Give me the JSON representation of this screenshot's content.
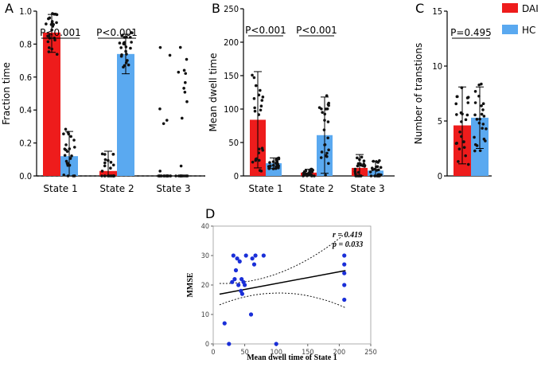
{
  "legend": [
    {
      "label": "DAI",
      "color": "#ee1c1c"
    },
    {
      "label": "HC",
      "color": "#5aa9f0"
    }
  ],
  "chart_data": [
    {
      "panel": "A",
      "type": "bar",
      "ylabel": "Fraction time",
      "ylim": [
        0,
        1.0
      ],
      "yticks": [
        "0.0",
        "0.2",
        "0.4",
        "0.6",
        "0.8",
        "1.0"
      ],
      "categories": [
        "State 1",
        "State 2",
        "State 3"
      ],
      "series": [
        {
          "name": "DAI",
          "values": [
            0.87,
            0.03,
            0.0
          ]
        },
        {
          "name": "HC",
          "values": [
            0.12,
            0.74,
            0.0
          ]
        }
      ],
      "errors": [
        [
          0.12,
          0.12,
          0.0
        ],
        [
          0.15,
          0.12,
          0.0
        ]
      ],
      "annotations": [
        {
          "text": "P<0.001",
          "category": 0
        },
        {
          "text": "P<0.001",
          "category": 1
        }
      ]
    },
    {
      "panel": "B",
      "type": "bar",
      "ylabel": "Mean dwell time",
      "ylim": [
        0,
        250
      ],
      "yticks": [
        "0",
        "50",
        "100",
        "150",
        "200",
        "250"
      ],
      "categories": [
        "State 1",
        "State 2",
        "State 3"
      ],
      "series": [
        {
          "name": "DAI",
          "values": [
            84,
            5,
            12
          ]
        },
        {
          "name": "HC",
          "values": [
            19,
            61,
            8
          ]
        }
      ],
      "errors": [
        [
          72,
          5,
          20
        ],
        [
          8,
          57,
          14
        ]
      ],
      "annotations": [
        {
          "text": "P<0.001",
          "category": 0
        },
        {
          "text": "P<0.001",
          "category": 1
        }
      ]
    },
    {
      "panel": "C",
      "type": "bar",
      "ylabel": "Number of transtions",
      "ylim": [
        0,
        15
      ],
      "yticks": [
        "0",
        "5",
        "10",
        "15"
      ],
      "categories": [
        ""
      ],
      "series": [
        {
          "name": "DAI",
          "values": [
            4.6
          ]
        },
        {
          "name": "HC",
          "values": [
            5.3
          ]
        }
      ],
      "errors": [
        [
          3.5
        ],
        [
          2.8
        ]
      ],
      "annotations": [
        {
          "text": "P=0.495",
          "category": 0
        }
      ]
    },
    {
      "panel": "D",
      "type": "scatter",
      "xlabel": "Mean dwell time of State 1",
      "ylabel": "MMSE",
      "xlim": [
        0,
        250
      ],
      "ylim": [
        0,
        40
      ],
      "xticks": [
        "0",
        "50",
        "100",
        "150",
        "200",
        "250"
      ],
      "yticks": [
        "0",
        "10",
        "20",
        "30",
        "40"
      ],
      "annotations": [
        "r = 0.419",
        "p = 0.033"
      ],
      "points": [
        [
          18,
          7
        ],
        [
          25,
          0
        ],
        [
          30,
          21
        ],
        [
          32,
          30
        ],
        [
          34,
          22
        ],
        [
          36,
          25
        ],
        [
          38,
          29
        ],
        [
          40,
          20
        ],
        [
          42,
          28
        ],
        [
          44,
          18
        ],
        [
          45,
          22
        ],
        [
          46,
          17
        ],
        [
          48,
          21
        ],
        [
          50,
          20
        ],
        [
          52,
          30
        ],
        [
          60,
          10
        ],
        [
          62,
          29
        ],
        [
          65,
          27
        ],
        [
          67,
          30
        ],
        [
          80,
          30
        ],
        [
          100,
          0
        ],
        [
          208,
          30
        ],
        [
          208,
          27
        ],
        [
          208,
          24
        ],
        [
          208,
          20
        ],
        [
          208,
          15
        ]
      ],
      "fit": {
        "slope": 0.04,
        "intercept": 16.5
      }
    }
  ]
}
